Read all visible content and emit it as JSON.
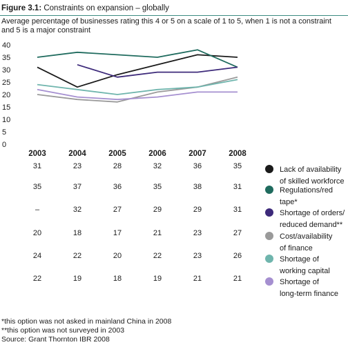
{
  "header": {
    "title_bold": "Figure 3.1:",
    "title_rest": " Constraints on expansion – globally",
    "subtitle": "Average percentage of businesses rating this 4 or 5 on a scale of 1 to 5, when 1 is not a constraint and 5 is a major constraint"
  },
  "chart_data": {
    "type": "line",
    "title": "Figure 3.1: Constraints on expansion – globally",
    "subtitle": "Average percentage of businesses rating this 4 or 5 on a scale of 1 to 5, when 1 is not a constraint and 5 is a major constraint",
    "categories": [
      "2003",
      "2004",
      "2005",
      "2006",
      "2007",
      "2008"
    ],
    "ylim": [
      0,
      40
    ],
    "yticks": [
      0,
      5,
      10,
      15,
      20,
      25,
      30,
      35,
      40
    ],
    "grid": false,
    "legend_placement": "right of data table",
    "series": [
      {
        "name": "Lack of availability of skilled workforce",
        "labels": [
          "31",
          "23",
          "28",
          "32",
          "36",
          "35"
        ],
        "values": [
          31,
          23,
          28,
          32,
          36,
          35
        ],
        "color": "#1a1a1a",
        "legend_lines": [
          "Lack of availability",
          "of skilled workforce"
        ]
      },
      {
        "name": "Regulations/red tape*",
        "labels": [
          "35",
          "37",
          "36",
          "35",
          "38",
          "31"
        ],
        "values": [
          35,
          37,
          36,
          35,
          38,
          31
        ],
        "color": "#1f6b5e",
        "legend_lines": [
          "Regulations/red",
          "tape*"
        ]
      },
      {
        "name": "Shortage of orders/reduced demand**",
        "labels": [
          "–",
          "32",
          "27",
          "29",
          "29",
          "31"
        ],
        "values": [
          null,
          32,
          27,
          29,
          29,
          31
        ],
        "color": "#3d2a7a",
        "legend_lines": [
          "Shortage of orders/",
          "reduced demand**"
        ]
      },
      {
        "name": "Cost/availability of finance",
        "labels": [
          "20",
          "18",
          "17",
          "21",
          "23",
          "27"
        ],
        "values": [
          20,
          18,
          17,
          21,
          23,
          27
        ],
        "color": "#9a9a9a",
        "legend_lines": [
          "Cost/availability",
          "of finance"
        ]
      },
      {
        "name": "Shortage of working capital",
        "labels": [
          "24",
          "22",
          "20",
          "22",
          "23",
          "26"
        ],
        "values": [
          24,
          22,
          20,
          22,
          23,
          26
        ],
        "color": "#6fb5ad",
        "legend_lines": [
          "Shortage of",
          "working capital"
        ]
      },
      {
        "name": "Shortage of long-term finance",
        "labels": [
          "22",
          "19",
          "18",
          "19",
          "21",
          "21"
        ],
        "values": [
          22,
          19,
          18,
          19,
          21,
          21
        ],
        "color": "#a58fd0",
        "legend_lines": [
          "Shortage of",
          "long-term finance"
        ]
      }
    ]
  },
  "footnotes": [
    "*this option was not asked in mainland China in 2008",
    "**this option was not surveyed in 2003",
    "Source: Grant Thornton IBR 2008"
  ]
}
